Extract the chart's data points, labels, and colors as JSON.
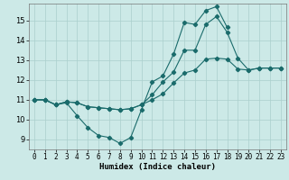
{
  "xlabel": "Humidex (Indice chaleur)",
  "bg_color": "#cce9e7",
  "grid_color": "#aacfcc",
  "line_color": "#1a6b6b",
  "xlim": [
    -0.5,
    23.5
  ],
  "ylim": [
    8.5,
    15.85
  ],
  "yticks": [
    9,
    10,
    11,
    12,
    13,
    14,
    15
  ],
  "xticks": [
    0,
    1,
    2,
    3,
    4,
    5,
    6,
    7,
    8,
    9,
    10,
    11,
    12,
    13,
    14,
    15,
    16,
    17,
    18,
    19,
    20,
    21,
    22,
    23
  ],
  "line1_x": [
    0,
    1,
    2,
    3,
    4,
    5,
    6,
    7,
    8,
    9,
    10,
    11,
    12,
    13,
    14,
    15,
    16,
    17,
    18
  ],
  "line1_y": [
    11.0,
    11.0,
    10.75,
    10.85,
    10.2,
    9.6,
    9.2,
    9.1,
    8.8,
    9.1,
    10.5,
    11.9,
    12.2,
    13.3,
    14.9,
    14.8,
    15.5,
    15.7,
    14.65
  ],
  "line2_x": [
    0,
    1,
    2,
    3,
    4,
    5,
    6,
    7,
    8,
    9,
    10,
    11,
    12,
    13,
    14,
    15,
    16,
    17,
    18,
    19,
    20,
    21,
    22,
    23
  ],
  "line2_y": [
    11.0,
    11.0,
    10.75,
    10.9,
    10.85,
    10.65,
    10.6,
    10.55,
    10.5,
    10.55,
    10.75,
    11.0,
    11.3,
    11.85,
    12.35,
    12.5,
    13.05,
    13.1,
    13.05,
    12.55,
    12.5,
    12.6,
    12.6,
    12.6
  ],
  "line3_x": [
    0,
    1,
    2,
    3,
    4,
    5,
    6,
    7,
    8,
    9,
    10,
    11,
    12,
    13,
    14,
    15,
    16,
    17,
    18,
    19,
    20,
    21,
    22,
    23
  ],
  "line3_y": [
    11.0,
    11.0,
    10.75,
    10.9,
    10.85,
    10.65,
    10.6,
    10.55,
    10.5,
    10.55,
    10.75,
    11.25,
    11.9,
    12.4,
    13.5,
    13.5,
    14.8,
    15.2,
    14.4,
    13.1,
    12.5,
    12.6,
    12.6,
    12.6
  ],
  "xlabel_fontsize": 6.5,
  "tick_fontsize": 5.5,
  "marker_size": 2.2,
  "linewidth": 0.8
}
